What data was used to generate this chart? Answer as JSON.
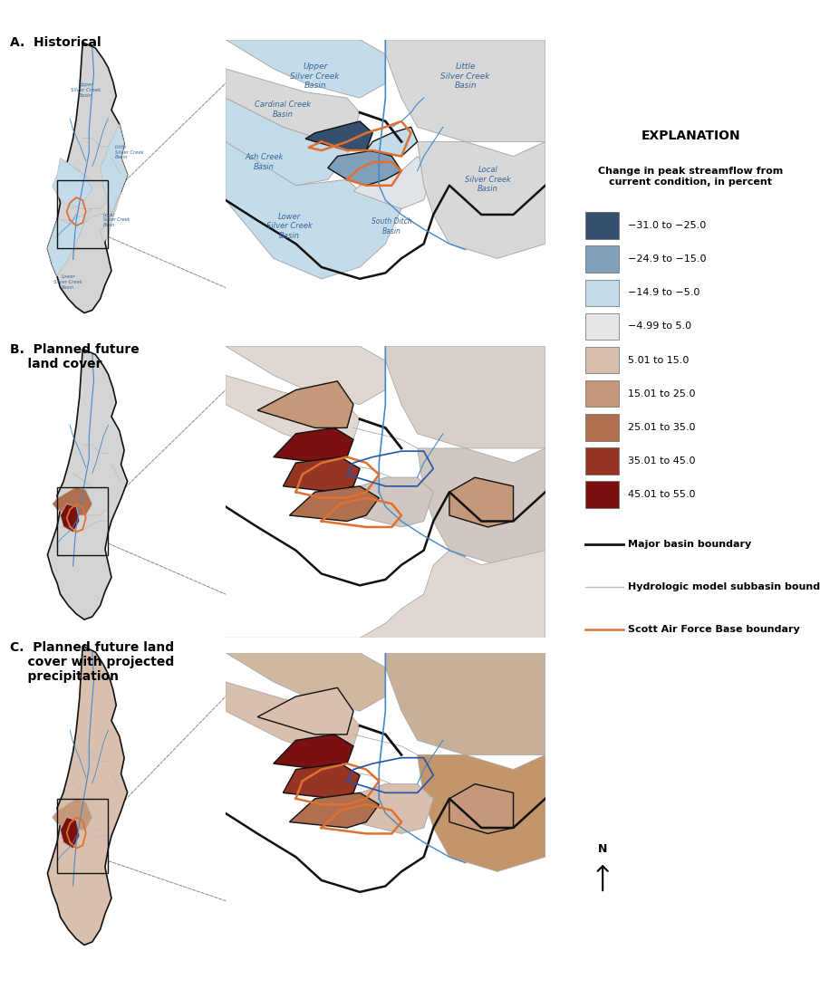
{
  "title_a": "A.  Historical",
  "title_b": "B.  Planned future\n    land cover",
  "title_c": "C.  Planned future land\n    cover with projected\n    precipitation",
  "explanation_title": "EXPLANATION",
  "explanation_subtitle": "Change in peak streamflow from\ncurrent condition, in percent",
  "legend_items": [
    {
      "color": "#364f6e",
      "label": "−31.0 to −25.0"
    },
    {
      "color": "#7fa0b8",
      "label": "−24.9 to −15.0"
    },
    {
      "color": "#c4dcea",
      "label": "−14.9 to −5.0"
    },
    {
      "color": "#e5e5e5",
      "label": "−4.99 to 5.0"
    },
    {
      "color": "#d8bfae",
      "label": "5.01 to 15.0"
    },
    {
      "color": "#c49878",
      "label": "15.01 to 25.0"
    },
    {
      "color": "#b07050",
      "label": "25.01 to 35.0"
    },
    {
      "color": "#963525",
      "label": "35.01 to 45.0"
    },
    {
      "color": "#7a1010",
      "label": "45.01 to 55.0"
    }
  ],
  "line_legend": [
    {
      "color": "#111111",
      "lw": 2.0,
      "label": "Major basin boundary"
    },
    {
      "color": "#bbbbbb",
      "lw": 1.0,
      "label": "Hydrologic model subbasin boundary"
    },
    {
      "color": "#e07030",
      "lw": 1.8,
      "label": "Scott Air Force Base boundary"
    }
  ],
  "background": "#ffffff",
  "river_color": "#4488cc",
  "safb_color": "#e07030",
  "major_color": "#111111",
  "subbasin_color": "#bbbbbb"
}
